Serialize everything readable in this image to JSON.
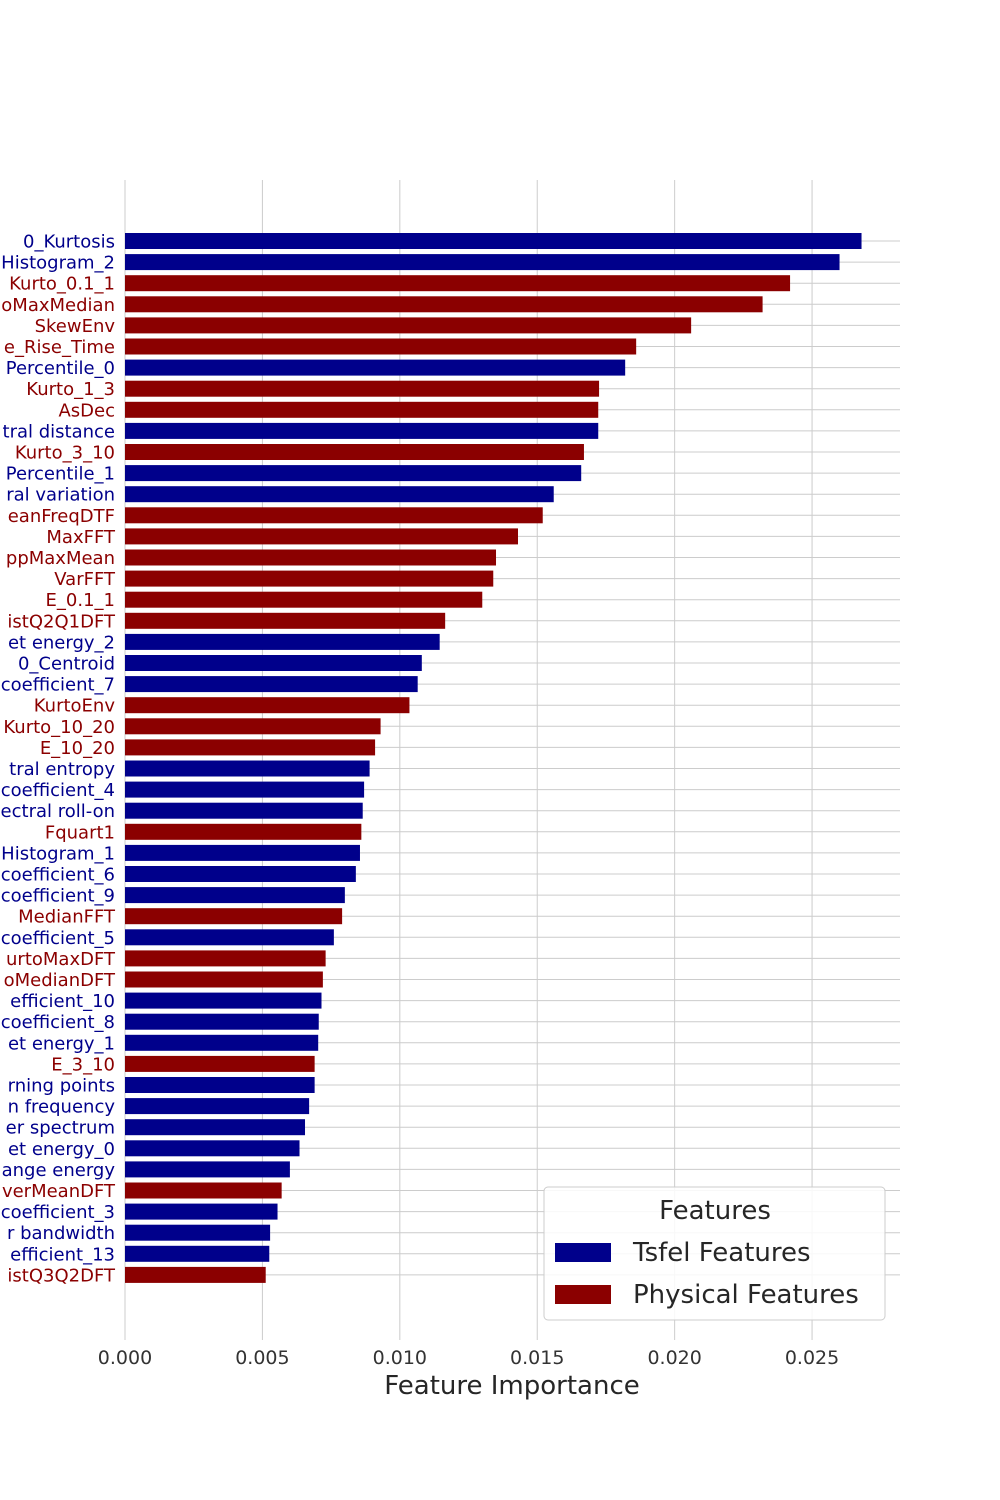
{
  "colors": {
    "tsfel": "#00008b",
    "physical": "#8b0000",
    "grid": "#cccccc"
  },
  "chart_data": {
    "type": "bar",
    "orientation": "horizontal",
    "xlabel": "Feature Importance",
    "ylabel": "",
    "xlim": [
      0,
      0.0282
    ],
    "xticks": [
      "0.000",
      "0.005",
      "0.010",
      "0.015",
      "0.020",
      "0.025"
    ],
    "grid": true,
    "legend": {
      "title": "Features",
      "placement": "lower-right",
      "entries": [
        {
          "group": "tsfel",
          "label": "Tsfel Features"
        },
        {
          "group": "physical",
          "label": "Physical Features"
        }
      ]
    },
    "bars": [
      {
        "label": "0_Kurtosis",
        "value": 0.0268,
        "group": "tsfel"
      },
      {
        "label": "Histogram_2",
        "value": 0.026,
        "group": "tsfel"
      },
      {
        "label": "Kurto_0.1_1",
        "value": 0.0242,
        "group": "physical"
      },
      {
        "label": "oMaxMedian",
        "value": 0.0232,
        "group": "physical"
      },
      {
        "label": "SkewEnv",
        "value": 0.0206,
        "group": "physical"
      },
      {
        "label": "e_Rise_Time",
        "value": 0.0186,
        "group": "physical"
      },
      {
        "label": "Percentile_0",
        "value": 0.0182,
        "group": "tsfel"
      },
      {
        "label": "Kurto_1_3",
        "value": 0.01725,
        "group": "physical"
      },
      {
        "label": "AsDec",
        "value": 0.01722,
        "group": "physical"
      },
      {
        "label": "tral distance",
        "value": 0.01722,
        "group": "tsfel"
      },
      {
        "label": "Kurto_3_10",
        "value": 0.0167,
        "group": "physical"
      },
      {
        "label": "Percentile_1",
        "value": 0.0166,
        "group": "tsfel"
      },
      {
        "label": "ral variation",
        "value": 0.0156,
        "group": "tsfel"
      },
      {
        "label": "eanFreqDTF",
        "value": 0.0152,
        "group": "physical"
      },
      {
        "label": "MaxFFT",
        "value": 0.0143,
        "group": "physical"
      },
      {
        "label": "ppMaxMean",
        "value": 0.0135,
        "group": "physical"
      },
      {
        "label": "VarFFT",
        "value": 0.0134,
        "group": "physical"
      },
      {
        "label": "E_0.1_1",
        "value": 0.013,
        "group": "physical"
      },
      {
        "label": "istQ2Q1DFT",
        "value": 0.01165,
        "group": "physical"
      },
      {
        "label": "et energy_2",
        "value": 0.01145,
        "group": "tsfel"
      },
      {
        "label": "0_Centroid",
        "value": 0.0108,
        "group": "tsfel"
      },
      {
        "label": "coefficient_7",
        "value": 0.01065,
        "group": "tsfel"
      },
      {
        "label": "KurtoEnv",
        "value": 0.01035,
        "group": "physical"
      },
      {
        "label": "Kurto_10_20",
        "value": 0.0093,
        "group": "physical"
      },
      {
        "label": "E_10_20",
        "value": 0.0091,
        "group": "physical"
      },
      {
        "label": "tral entropy",
        "value": 0.0089,
        "group": "tsfel"
      },
      {
        "label": "coefficient_4",
        "value": 0.0087,
        "group": "tsfel"
      },
      {
        "label": "ectral roll-on",
        "value": 0.00865,
        "group": "tsfel"
      },
      {
        "label": "Fquart1",
        "value": 0.0086,
        "group": "physical"
      },
      {
        "label": "Histogram_1",
        "value": 0.00855,
        "group": "tsfel"
      },
      {
        "label": "coefficient_6",
        "value": 0.0084,
        "group": "tsfel"
      },
      {
        "label": "coefficient_9",
        "value": 0.008,
        "group": "tsfel"
      },
      {
        "label": "MedianFFT",
        "value": 0.0079,
        "group": "physical"
      },
      {
        "label": "coefficient_5",
        "value": 0.0076,
        "group": "tsfel"
      },
      {
        "label": "urtoMaxDFT",
        "value": 0.0073,
        "group": "physical"
      },
      {
        "label": "oMedianDFT",
        "value": 0.0072,
        "group": "physical"
      },
      {
        "label": "efficient_10",
        "value": 0.00715,
        "group": "tsfel"
      },
      {
        "label": "coefficient_8",
        "value": 0.00705,
        "group": "tsfel"
      },
      {
        "label": "et energy_1",
        "value": 0.00703,
        "group": "tsfel"
      },
      {
        "label": "E_3_10",
        "value": 0.0069,
        "group": "physical"
      },
      {
        "label": "rning points",
        "value": 0.0069,
        "group": "tsfel"
      },
      {
        "label": "n frequency",
        "value": 0.0067,
        "group": "tsfel"
      },
      {
        "label": "er spectrum",
        "value": 0.00655,
        "group": "tsfel"
      },
      {
        "label": "et energy_0",
        "value": 0.00635,
        "group": "tsfel"
      },
      {
        "label": "ange energy",
        "value": 0.006,
        "group": "tsfel"
      },
      {
        "label": "verMeanDFT",
        "value": 0.0057,
        "group": "physical"
      },
      {
        "label": "coefficient_3",
        "value": 0.00555,
        "group": "tsfel"
      },
      {
        "label": "r bandwidth",
        "value": 0.00528,
        "group": "tsfel"
      },
      {
        "label": "efficient_13",
        "value": 0.00525,
        "group": "tsfel"
      },
      {
        "label": "istQ3Q2DFT",
        "value": 0.00512,
        "group": "physical"
      }
    ]
  }
}
